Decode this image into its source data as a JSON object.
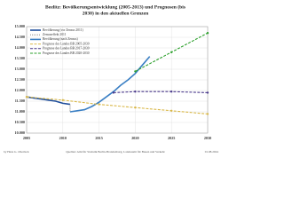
{
  "chart_data": {
    "type": "line",
    "title_lines": [
      "Beelitz: Bevölkerungsentwicklung (2005-2013) und Prognosen (bis",
      "2030) in den aktuellen Grenzen"
    ],
    "xlim": [
      2005,
      2030
    ],
    "xticks": [
      2005,
      2010,
      2015,
      2020,
      2025,
      2030
    ],
    "ylim": [
      10000,
      15000
    ],
    "yticks": [
      {
        "value": 10000,
        "label": "10.000"
      },
      {
        "value": 10500,
        "label": "10.500"
      },
      {
        "value": 11000,
        "label": "11.000"
      },
      {
        "value": 11500,
        "label": "11.500"
      },
      {
        "value": 12000,
        "label": "12.000"
      },
      {
        "value": 12500,
        "label": "12.500"
      },
      {
        "value": 13000,
        "label": "13.000"
      },
      {
        "value": 13500,
        "label": "13.500"
      },
      {
        "value": 14000,
        "label": "14.000"
      },
      {
        "value": 14500,
        "label": "14.500"
      },
      {
        "value": 15000,
        "label": "15.000"
      }
    ],
    "grid": true,
    "legend": "upper left",
    "series": [
      {
        "name": "Bevölkerung (vor Zensus 2011)",
        "color": "#1f4e9c",
        "style": "solid",
        "x": [
          2005,
          2006,
          2007,
          2008,
          2009,
          2010,
          2011
        ],
        "values": [
          11700,
          11650,
          11600,
          11550,
          11500,
          11400,
          11350
        ]
      },
      {
        "name": "Zensuseffekt 2011",
        "color": "#888888",
        "style": "dotted",
        "x": [
          2011,
          2011
        ],
        "values": [
          11350,
          11000
        ]
      },
      {
        "name": "Bevölkerung (nach Zensus)",
        "color": "#3a7fc4",
        "style": "solid",
        "x": [
          2011,
          2012,
          2013,
          2014,
          2015,
          2016,
          2017,
          2018,
          2019,
          2020,
          2021,
          2022
        ],
        "values": [
          11000,
          11050,
          11100,
          11250,
          11450,
          11700,
          11950,
          12250,
          12500,
          12800,
          13200,
          13600
        ]
      },
      {
        "name": "Prognose des Landes BB 2005-2030",
        "color": "#d9b84a",
        "style": "dashed",
        "x": [
          2005,
          2010,
          2015,
          2020,
          2025,
          2030
        ],
        "values": [
          11700,
          11550,
          11350,
          11200,
          11050,
          10900
        ]
      },
      {
        "name": "Prognose des Landes BB 2017-2030",
        "color": "#4b3a8c",
        "style": "dashed",
        "x": [
          2017,
          2020,
          2025,
          2030
        ],
        "values": [
          11900,
          11950,
          11950,
          11900
        ]
      },
      {
        "name": "Prognose des Landes BB 2020-2030",
        "color": "#2ca02c",
        "style": "dashed",
        "x": [
          2020,
          2025,
          2030
        ],
        "values": [
          12900,
          13800,
          14700
        ]
      }
    ],
    "footer": {
      "author": "by Hans G. Oberlack",
      "source": "Quellen: Amt für Statistik Berlin-Brandenburg, Landesamt für Bauen und Verkehr",
      "date": "01.08.2024"
    }
  }
}
